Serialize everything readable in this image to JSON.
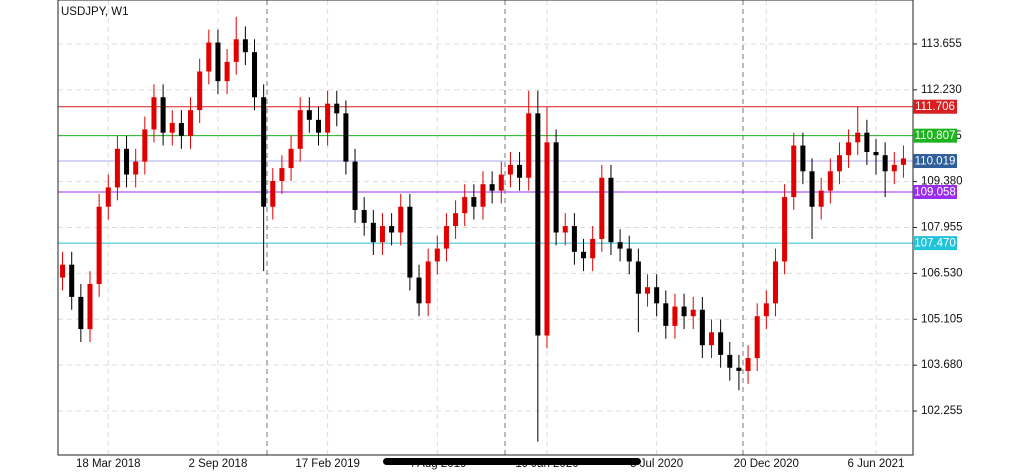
{
  "chart_data": {
    "type": "candlestick",
    "title": "USDJPY, W1",
    "categories": [
      null,
      null,
      null,
      null,
      null,
      "18 Mar 2018",
      null,
      null,
      null,
      null,
      null,
      null,
      null,
      null,
      null,
      null,
      null,
      "2 Sep 2018",
      null,
      null,
      null,
      null,
      null,
      null,
      null,
      null,
      null,
      null,
      null,
      "17 Feb 2019",
      null,
      null,
      null,
      null,
      null,
      null,
      null,
      null,
      null,
      null,
      null,
      "4 Aug 2019",
      null,
      null,
      null,
      null,
      null,
      null,
      null,
      null,
      null,
      null,
      null,
      "19 Jan 2020",
      null,
      null,
      null,
      null,
      null,
      null,
      null,
      null,
      null,
      null,
      null,
      "5 Jul 2020",
      null,
      null,
      null,
      null,
      null,
      null,
      null,
      null,
      null,
      null,
      null,
      "20 Dec 2020",
      null,
      null,
      null,
      null,
      null,
      null,
      null,
      null,
      null,
      null,
      null,
      "6 Jun 2021",
      null,
      null,
      null
    ],
    "open": [
      106.4,
      106.8,
      105.8,
      104.8,
      106.2,
      108.6,
      109.2,
      110.4,
      109.6,
      110.0,
      111.0,
      112.0,
      110.9,
      111.2,
      110.8,
      111.6,
      112.8,
      113.7,
      112.5,
      113.1,
      113.8,
      113.4,
      112.0,
      108.6,
      109.4,
      109.8,
      110.4,
      111.6,
      111.3,
      110.9,
      111.8,
      111.5,
      110.0,
      108.5,
      108.1,
      107.5,
      108.0,
      107.8,
      108.6,
      106.4,
      105.6,
      106.9,
      107.3,
      108.0,
      108.4,
      108.9,
      108.6,
      109.3,
      109.1,
      109.6,
      109.9,
      109.5,
      111.5,
      104.6,
      110.6,
      107.8,
      108.0,
      107.2,
      107.0,
      107.6,
      109.5,
      107.5,
      107.3,
      106.9,
      105.9,
      106.1,
      105.6,
      104.9,
      105.5,
      105.2,
      105.4,
      104.3,
      104.7,
      104.0,
      103.6,
      103.5,
      103.9,
      105.2,
      105.6,
      106.9,
      108.9,
      110.5,
      109.7,
      108.6,
      109.1,
      109.7,
      110.2,
      110.6,
      110.9,
      110.3,
      110.2,
      109.7,
      109.9
    ],
    "high": [
      107.2,
      107.2,
      106.2,
      106.6,
      109.0,
      109.6,
      110.8,
      110.8,
      110.4,
      111.4,
      112.4,
      112.4,
      111.6,
      111.6,
      112.0,
      113.2,
      114.1,
      114.1,
      113.5,
      114.5,
      114.2,
      113.8,
      112.4,
      109.8,
      110.2,
      110.8,
      112.0,
      112.0,
      111.7,
      112.2,
      112.2,
      111.9,
      110.4,
      108.9,
      108.5,
      108.4,
      108.4,
      109.0,
      109.0,
      106.8,
      107.3,
      107.7,
      108.4,
      108.8,
      109.3,
      109.3,
      109.7,
      109.7,
      110.0,
      110.3,
      110.3,
      112.2,
      112.2,
      111.7,
      111.0,
      108.4,
      108.4,
      107.6,
      108.0,
      109.9,
      109.9,
      107.9,
      107.7,
      107.3,
      106.5,
      106.5,
      106.0,
      105.9,
      105.9,
      105.8,
      105.8,
      105.1,
      105.1,
      104.4,
      104.0,
      104.3,
      105.6,
      106.0,
      107.3,
      109.3,
      110.9,
      110.9,
      110.1,
      109.5,
      110.1,
      110.6,
      111.0,
      111.7,
      111.3,
      110.7,
      110.6,
      110.3,
      110.5
    ],
    "low": [
      106.0,
      105.4,
      104.4,
      104.4,
      105.8,
      108.2,
      108.8,
      109.2,
      109.2,
      109.6,
      110.6,
      110.5,
      110.5,
      110.4,
      110.4,
      111.2,
      112.4,
      112.1,
      112.1,
      112.7,
      113.0,
      111.6,
      106.6,
      108.2,
      109.0,
      109.4,
      110.0,
      110.9,
      110.5,
      110.5,
      111.1,
      109.6,
      108.1,
      107.7,
      107.1,
      107.1,
      107.4,
      107.4,
      106.0,
      105.2,
      105.2,
      106.5,
      106.9,
      107.6,
      108.0,
      108.2,
      108.2,
      108.7,
      108.7,
      109.2,
      109.1,
      109.1,
      101.3,
      104.2,
      107.4,
      107.4,
      106.8,
      106.6,
      106.6,
      107.2,
      107.1,
      106.9,
      106.5,
      104.7,
      105.5,
      105.2,
      104.5,
      104.5,
      104.8,
      104.8,
      103.9,
      103.9,
      103.6,
      103.2,
      102.9,
      103.1,
      103.5,
      104.8,
      105.2,
      106.5,
      108.5,
      109.3,
      107.6,
      108.2,
      108.7,
      109.3,
      109.8,
      110.2,
      109.9,
      109.6,
      108.9,
      109.3,
      109.5
    ],
    "close": [
      106.8,
      105.8,
      104.8,
      106.2,
      108.6,
      109.2,
      110.4,
      109.6,
      110.0,
      111.0,
      112.0,
      110.9,
      111.2,
      110.8,
      111.6,
      112.8,
      113.7,
      112.5,
      113.1,
      113.8,
      113.4,
      112.0,
      108.6,
      109.4,
      109.8,
      110.4,
      111.6,
      111.3,
      110.9,
      111.8,
      111.5,
      110.0,
      108.5,
      108.1,
      107.5,
      108.0,
      107.8,
      108.6,
      106.4,
      105.6,
      106.9,
      107.3,
      108.0,
      108.4,
      108.9,
      108.6,
      109.3,
      109.1,
      109.6,
      109.9,
      109.5,
      111.5,
      104.6,
      110.6,
      107.8,
      108.0,
      107.2,
      107.0,
      107.6,
      109.5,
      107.5,
      107.3,
      106.9,
      105.9,
      106.1,
      105.6,
      104.9,
      105.5,
      105.2,
      105.4,
      104.3,
      104.7,
      104.0,
      103.6,
      103.5,
      103.9,
      105.2,
      105.6,
      106.9,
      108.9,
      110.5,
      109.7,
      108.6,
      109.1,
      109.7,
      110.2,
      110.6,
      110.9,
      110.3,
      110.2,
      109.7,
      109.9,
      110.1
    ],
    "up_color": "#e00000",
    "down_color": "#000000",
    "ylim": [
      100.89,
      115.02
    ],
    "yticks": [
      102.255,
      {
        "value": 103.68,
        "label": "103.680"
      },
      105.105,
      {
        "value": 106.53,
        "label": "106.530"
      },
      107.955,
      {
        "value": 109.38,
        "label": "109.380"
      },
      110.805,
      {
        "value": 112.23,
        "label": "112.230"
      },
      113.655
    ],
    "grid": true,
    "levels": [
      {
        "value": 111.706,
        "color": "#d81e1e",
        "line_color": "#d81e1e"
      },
      {
        "value": 110.807,
        "color": "#1fb31f",
        "line_color": "#1fb31f"
      },
      {
        "value": 110.019,
        "color": "#2e5f9a",
        "line_color": "#a9a9ec"
      },
      {
        "value": 109.058,
        "color": "#9a2cf0",
        "line_color": "#9a2cf0"
      },
      {
        "value": 107.47,
        "label": "107.470",
        "color": "#22c3d8",
        "line_color": "#22c3d8"
      }
    ]
  }
}
